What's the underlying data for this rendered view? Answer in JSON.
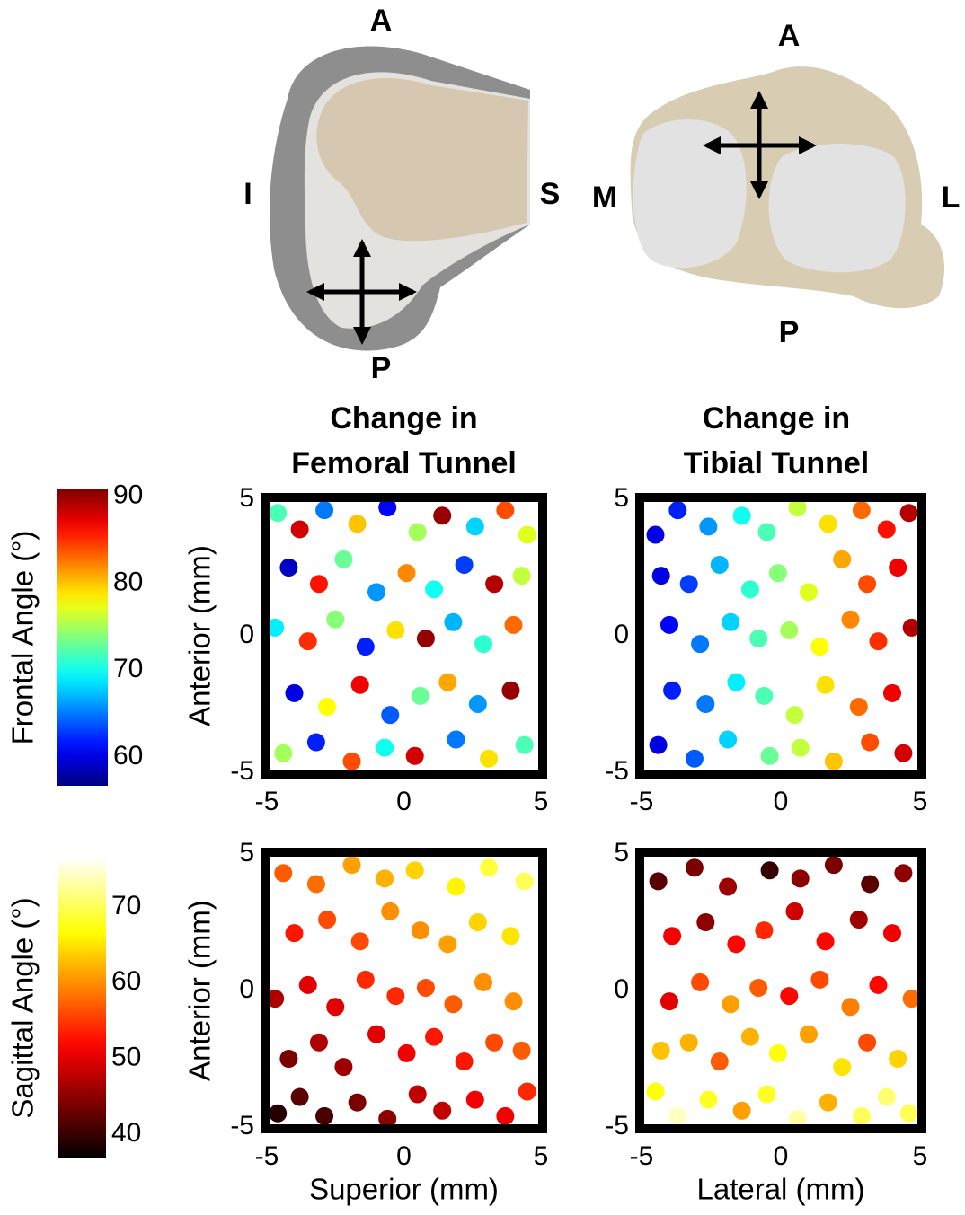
{
  "anatomy": {
    "femur": {
      "top": "A",
      "left": "I",
      "right": "S",
      "bottom": "P"
    },
    "tibia": {
      "top": "A",
      "left": "M",
      "right": "L",
      "bottom": "P"
    }
  },
  "chart_data": [
    {
      "type": "scatter",
      "colorbar": {
        "label": "Frontal Angle (°)",
        "colormap": "jet",
        "ylim": [
          56.7,
          90.8
        ],
        "yticks": [
          60,
          70,
          80,
          90
        ]
      },
      "panels": [
        {
          "title": [
            "Change in",
            "Femoral Tunnel"
          ],
          "ylabel": "Anterior (mm)",
          "xlim": [
            -5,
            5
          ],
          "xticks": [
            -5,
            0,
            5
          ],
          "ylim": [
            -5,
            5
          ],
          "yticks": [
            -5,
            0,
            5
          ],
          "points": {
            "x": [
              -4.6,
              -3.8,
              -2.9,
              -1.7,
              -0.6,
              0.5,
              1.4,
              2.6,
              3.7,
              4.5,
              -4.2,
              -3.1,
              -2.2,
              -1.0,
              0.1,
              1.1,
              2.2,
              3.3,
              4.3,
              -4.7,
              -3.5,
              -2.5,
              -1.4,
              -0.3,
              0.8,
              1.8,
              2.9,
              4.0,
              -4.0,
              -2.8,
              -1.6,
              -0.5,
              0.6,
              1.6,
              2.7,
              3.9,
              -4.4,
              -3.2,
              -1.9,
              -0.7,
              0.4,
              1.9,
              3.1,
              4.4
            ],
            "y": [
              4.5,
              3.9,
              4.6,
              4.1,
              4.7,
              3.8,
              4.4,
              4.0,
              4.6,
              3.7,
              2.5,
              1.9,
              2.8,
              1.6,
              2.3,
              1.7,
              2.6,
              1.9,
              2.2,
              0.3,
              -0.2,
              0.6,
              -0.4,
              0.2,
              -0.1,
              0.5,
              -0.3,
              0.4,
              -2.1,
              -2.6,
              -1.8,
              -2.9,
              -2.2,
              -1.7,
              -2.5,
              -2.0,
              -4.3,
              -3.9,
              -4.6,
              -4.1,
              -4.4,
              -3.8,
              -4.5,
              -4.0
            ],
            "c": [
              72,
              88,
              65,
              80,
              61,
              75,
              90,
              68,
              84,
              77,
              59,
              86,
              73,
              66,
              82,
              70,
              63,
              89,
              76,
              69,
              85,
              74,
              62,
              79,
              90,
              67,
              71,
              83,
              60,
              78,
              87,
              64,
              73,
              81,
              66,
              90,
              75,
              62,
              84,
              70,
              88,
              65,
              79,
              72
            ]
          }
        },
        {
          "title": [
            "Change in",
            "Tibial Tunnel"
          ],
          "xlim": [
            -5,
            5
          ],
          "xticks": [
            -5,
            0,
            5
          ],
          "ylim": [
            -5,
            5
          ],
          "yticks": [
            -5,
            0,
            5
          ],
          "points": {
            "x": [
              4.6,
              3.8,
              2.9,
              1.7,
              0.6,
              -0.5,
              -1.4,
              -2.6,
              -3.7,
              -4.5,
              4.2,
              3.1,
              2.2,
              1.0,
              -0.1,
              -1.1,
              -2.2,
              -3.3,
              -4.3,
              4.7,
              3.5,
              2.5,
              1.4,
              0.3,
              -0.8,
              -1.8,
              -2.9,
              -4.0,
              4.0,
              2.8,
              1.6,
              0.5,
              -0.6,
              -1.6,
              -2.7,
              -3.9,
              4.4,
              3.2,
              1.9,
              0.7,
              -0.4,
              -1.9,
              -3.1,
              -4.4
            ],
            "y": [
              4.5,
              3.9,
              4.6,
              4.1,
              4.7,
              3.8,
              4.4,
              4.0,
              4.6,
              3.7,
              2.5,
              1.9,
              2.8,
              1.6,
              2.3,
              1.7,
              2.6,
              1.9,
              2.2,
              0.3,
              -0.2,
              0.6,
              -0.4,
              0.2,
              -0.1,
              0.5,
              -0.3,
              0.4,
              -2.1,
              -2.6,
              -1.8,
              -2.9,
              -2.2,
              -1.7,
              -2.5,
              -2.0,
              -4.3,
              -3.9,
              -4.6,
              -4.1,
              -4.4,
              -3.8,
              -4.5,
              -4.0
            ],
            "c": [
              89,
              86,
              83,
              79,
              76,
              72,
              70,
              66,
              62,
              60,
              87,
              84,
              81,
              77,
              74,
              71,
              67,
              63,
              60,
              89,
              85,
              82,
              78,
              75,
              72,
              68,
              65,
              61,
              87,
              83,
              79,
              76,
              72,
              69,
              65,
              62,
              88,
              84,
              80,
              76,
              73,
              68,
              64,
              60
            ]
          }
        }
      ]
    },
    {
      "type": "scatter",
      "colorbar": {
        "label": "Sagittal Angle (°)",
        "colormap": "hot",
        "ylim": [
          36.8,
          76.5
        ],
        "yticks": [
          40,
          50,
          60,
          70
        ]
      },
      "panels": [
        {
          "ylabel": "Anterior (mm)",
          "xlabel": "Superior (mm)",
          "xlim": [
            -5,
            5
          ],
          "xticks": [
            -5,
            0,
            5
          ],
          "ylim": [
            -5,
            5
          ],
          "yticks": [
            -5,
            0,
            5
          ],
          "points": {
            "x": [
              -4.6,
              -3.8,
              -2.9,
              -1.7,
              -0.6,
              0.5,
              1.4,
              2.6,
              3.7,
              4.5,
              -4.2,
              -3.1,
              -2.2,
              -1.0,
              0.1,
              1.1,
              2.2,
              3.3,
              4.3,
              -4.7,
              -3.5,
              -2.5,
              -1.4,
              -0.3,
              0.8,
              1.8,
              2.9,
              4.0,
              -4.0,
              -2.8,
              -1.6,
              -0.5,
              0.6,
              1.6,
              2.7,
              3.9,
              -4.4,
              -3.2,
              -1.9,
              -0.7,
              0.4,
              1.9,
              3.1,
              4.4
            ],
            "y": [
              -4.5,
              -3.9,
              -4.6,
              -4.1,
              -4.7,
              -3.8,
              -4.4,
              -4.0,
              -4.6,
              -3.7,
              -2.5,
              -1.9,
              -2.8,
              -1.6,
              -2.3,
              -1.7,
              -2.6,
              -1.9,
              -2.2,
              -0.3,
              0.2,
              -0.6,
              0.4,
              -0.2,
              0.1,
              -0.5,
              0.3,
              -0.4,
              2.1,
              2.6,
              1.8,
              2.9,
              2.2,
              1.7,
              2.5,
              2.0,
              4.3,
              3.9,
              4.6,
              4.1,
              4.4,
              3.8,
              4.5,
              4.0
            ],
            "c": [
              39,
              42,
              41,
              44,
              45,
              48,
              48,
              51,
              51,
              54,
              44,
              47,
              46,
              50,
              51,
              53,
              53,
              56,
              57,
              47,
              50,
              50,
              54,
              54,
              56,
              57,
              60,
              60,
              53,
              56,
              56,
              60,
              60,
              61,
              64,
              65,
              57,
              58,
              61,
              62,
              64,
              66,
              69,
              70
            ]
          }
        },
        {
          "xlabel": "Lateral (mm)",
          "xlim": [
            -5,
            5
          ],
          "xticks": [
            -5,
            0,
            5
          ],
          "ylim": [
            -5,
            5
          ],
          "yticks": [
            -5,
            0,
            5
          ],
          "points": {
            "x": [
              4.6,
              3.8,
              2.9,
              1.7,
              0.6,
              -0.5,
              -1.4,
              -2.6,
              -3.7,
              -4.5,
              4.2,
              3.1,
              2.2,
              1.0,
              -0.1,
              -1.1,
              -2.2,
              -3.3,
              -4.3,
              4.7,
              3.5,
              2.5,
              1.4,
              0.3,
              -0.8,
              -1.8,
              -2.9,
              -4.0,
              4.0,
              2.8,
              1.6,
              0.5,
              -0.6,
              -1.6,
              -2.7,
              -3.9,
              4.4,
              3.2,
              1.9,
              0.7,
              -0.4,
              -1.9,
              -3.1,
              -4.4
            ],
            "y": [
              -4.5,
              -3.9,
              -4.6,
              -4.1,
              -4.7,
              -3.8,
              -4.4,
              -4.0,
              -4.6,
              -3.7,
              -2.5,
              -1.9,
              -2.8,
              -1.6,
              -2.3,
              -1.7,
              -2.6,
              -1.9,
              -2.2,
              -0.3,
              0.2,
              -0.6,
              0.4,
              -0.2,
              0.1,
              -0.5,
              0.3,
              -0.4,
              2.1,
              2.6,
              1.8,
              2.9,
              2.2,
              1.7,
              2.5,
              2.0,
              4.3,
              3.9,
              4.6,
              4.1,
              4.4,
              3.8,
              4.5,
              4.0
            ],
            "c": [
              70,
              71,
              70,
              62,
              73,
              68,
              61,
              68,
              74,
              67,
              64,
              56,
              65,
              61,
              67,
              62,
              57,
              62,
              63,
              58,
              52,
              59,
              56,
              52,
              57,
              61,
              56,
              50,
              51,
              46,
              52,
              49,
              54,
              52,
              45,
              51,
              45,
              42,
              44,
              45,
              40,
              46,
              44,
              42
            ]
          }
        }
      ]
    }
  ]
}
